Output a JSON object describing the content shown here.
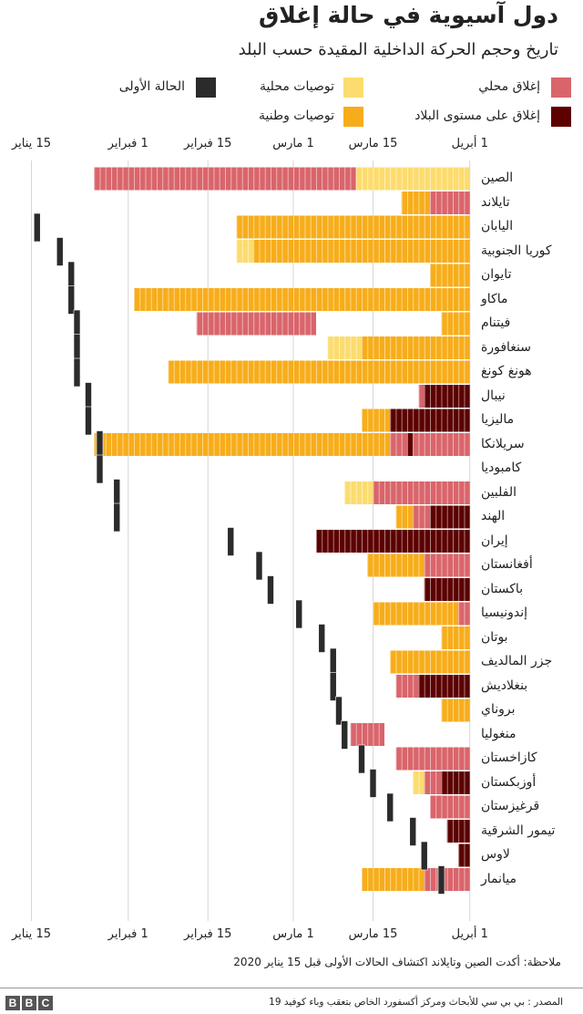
{
  "title": "دول آسيوية في حالة إغلاق",
  "subtitle": "تاريخ وحجم الحركة الداخلية المقيدة حسب البلد",
  "legend": [
    {
      "key": "local_lockdown",
      "label": "إغلاق محلي",
      "color": "#d9656b"
    },
    {
      "key": "national_lockdown",
      "label": "إغلاق على مستوى البلاد",
      "color": "#5c0000"
    },
    {
      "key": "local_advice",
      "label": "توصيات محلية",
      "color": "#fcdc6e"
    },
    {
      "key": "national_advice",
      "label": "توصيات وطنية",
      "color": "#f7ad1b"
    },
    {
      "key": "first_case",
      "label": "الحالة الأولى",
      "color": "#2b2b2b"
    }
  ],
  "chart_data": {
    "type": "gantt",
    "x_range": [
      "2020-01-15",
      "2020-04-01"
    ],
    "grid": true,
    "ticks": [
      {
        "date": "2020-01-15",
        "label": "15 يناير"
      },
      {
        "date": "2020-02-01",
        "label": "1 فبراير"
      },
      {
        "date": "2020-02-15",
        "label": "15 فبراير"
      },
      {
        "date": "2020-03-01",
        "label": "1 مارس"
      },
      {
        "date": "2020-03-15",
        "label": "15 مارس"
      },
      {
        "date": "2020-04-01",
        "label": "1 أبريل"
      }
    ],
    "rows": [
      {
        "name": "الصين",
        "first_case": null,
        "segments": [
          [
            "local_lockdown",
            "2020-01-26",
            "2020-03-11"
          ],
          [
            "local_advice",
            "2020-03-12",
            "2020-03-31"
          ]
        ]
      },
      {
        "name": "تايلاند",
        "first_case": null,
        "segments": [
          [
            "national_advice",
            "2020-03-20",
            "2020-03-24"
          ],
          [
            "local_lockdown",
            "2020-03-25",
            "2020-03-31"
          ]
        ]
      },
      {
        "name": "اليابان",
        "first_case": "2020-01-16",
        "segments": [
          [
            "national_advice",
            "2020-02-20",
            "2020-03-31"
          ]
        ]
      },
      {
        "name": "كوريا الجنوبية",
        "first_case": "2020-01-20",
        "segments": [
          [
            "local_advice",
            "2020-02-20",
            "2020-02-22"
          ],
          [
            "national_advice",
            "2020-02-23",
            "2020-03-31"
          ]
        ]
      },
      {
        "name": "تايوان",
        "first_case": "2020-01-22",
        "segments": [
          [
            "national_advice",
            "2020-03-25",
            "2020-03-31"
          ]
        ]
      },
      {
        "name": "ماكاو",
        "first_case": "2020-01-22",
        "segments": [
          [
            "national_advice",
            "2020-02-02",
            "2020-03-31"
          ]
        ]
      },
      {
        "name": "فيتنام",
        "first_case": "2020-01-23",
        "segments": [
          [
            "local_lockdown",
            "2020-02-13",
            "2020-03-04"
          ],
          [
            "national_advice",
            "2020-03-27",
            "2020-03-31"
          ]
        ]
      },
      {
        "name": "سنغافورة",
        "first_case": "2020-01-23",
        "segments": [
          [
            "local_advice",
            "2020-03-07",
            "2020-03-12"
          ],
          [
            "national_advice",
            "2020-03-13",
            "2020-03-31"
          ]
        ]
      },
      {
        "name": "هونغ كونغ",
        "first_case": "2020-01-23",
        "segments": [
          [
            "national_advice",
            "2020-02-08",
            "2020-03-31"
          ]
        ]
      },
      {
        "name": "نيبال",
        "first_case": "2020-01-25",
        "segments": [
          [
            "local_lockdown",
            "2020-03-23",
            "2020-03-23"
          ],
          [
            "national_lockdown",
            "2020-03-24",
            "2020-03-31"
          ]
        ]
      },
      {
        "name": "ماليزيا",
        "first_case": "2020-01-25",
        "segments": [
          [
            "national_advice",
            "2020-03-13",
            "2020-03-17"
          ],
          [
            "national_lockdown",
            "2020-03-18",
            "2020-03-31"
          ]
        ]
      },
      {
        "name": "سريلانكا",
        "first_case": "2020-01-27",
        "segments": [
          [
            "national_advice",
            "2020-01-26",
            "2020-03-17"
          ],
          [
            "local_lockdown",
            "2020-03-18",
            "2020-03-20"
          ],
          [
            "national_lockdown",
            "2020-03-21",
            "2020-03-21"
          ],
          [
            "local_lockdown",
            "2020-03-22",
            "2020-03-31"
          ]
        ]
      },
      {
        "name": "كامبوديا",
        "first_case": "2020-01-27",
        "segments": []
      },
      {
        "name": "الفلبين",
        "first_case": "2020-01-30",
        "segments": [
          [
            "local_advice",
            "2020-03-10",
            "2020-03-14"
          ],
          [
            "local_lockdown",
            "2020-03-15",
            "2020-03-31"
          ]
        ]
      },
      {
        "name": "الهند",
        "first_case": "2020-01-30",
        "segments": [
          [
            "national_advice",
            "2020-03-19",
            "2020-03-21"
          ],
          [
            "local_lockdown",
            "2020-03-22",
            "2020-03-24"
          ],
          [
            "national_lockdown",
            "2020-03-25",
            "2020-03-31"
          ]
        ]
      },
      {
        "name": "إيران",
        "first_case": "2020-02-19",
        "segments": [
          [
            "national_lockdown",
            "2020-03-05",
            "2020-03-31"
          ]
        ]
      },
      {
        "name": "أفغانستان",
        "first_case": "2020-02-24",
        "segments": [
          [
            "national_advice",
            "2020-03-14",
            "2020-03-23"
          ],
          [
            "local_lockdown",
            "2020-03-24",
            "2020-03-31"
          ]
        ]
      },
      {
        "name": "باكستان",
        "first_case": "2020-02-26",
        "segments": [
          [
            "national_lockdown",
            "2020-03-24",
            "2020-03-31"
          ]
        ]
      },
      {
        "name": "إندونيسيا",
        "first_case": "2020-03-02",
        "segments": [
          [
            "national_advice",
            "2020-03-15",
            "2020-03-29"
          ],
          [
            "local_lockdown",
            "2020-03-30",
            "2020-03-31"
          ]
        ]
      },
      {
        "name": "بوتان",
        "first_case": "2020-03-06",
        "segments": [
          [
            "national_advice",
            "2020-03-27",
            "2020-03-31"
          ]
        ]
      },
      {
        "name": "جزر المالديف",
        "first_case": "2020-03-08",
        "segments": [
          [
            "national_advice",
            "2020-03-18",
            "2020-03-31"
          ]
        ]
      },
      {
        "name": "بنغلاديش",
        "first_case": "2020-03-08",
        "segments": [
          [
            "local_lockdown",
            "2020-03-19",
            "2020-03-22"
          ],
          [
            "national_lockdown",
            "2020-03-23",
            "2020-03-31"
          ]
        ]
      },
      {
        "name": "بروناي",
        "first_case": "2020-03-09",
        "segments": [
          [
            "national_advice",
            "2020-03-27",
            "2020-03-31"
          ]
        ]
      },
      {
        "name": "منغوليا",
        "first_case": "2020-03-10",
        "segments": [
          [
            "local_lockdown",
            "2020-03-11",
            "2020-03-16"
          ]
        ]
      },
      {
        "name": "كازاخستان",
        "first_case": "2020-03-13",
        "segments": [
          [
            "local_lockdown",
            "2020-03-19",
            "2020-03-31"
          ]
        ]
      },
      {
        "name": "أوزبكستان",
        "first_case": "2020-03-15",
        "segments": [
          [
            "local_advice",
            "2020-03-22",
            "2020-03-23"
          ],
          [
            "local_lockdown",
            "2020-03-24",
            "2020-03-26"
          ],
          [
            "national_lockdown",
            "2020-03-27",
            "2020-03-31"
          ]
        ]
      },
      {
        "name": "قرغيزستان",
        "first_case": "2020-03-18",
        "segments": [
          [
            "local_lockdown",
            "2020-03-25",
            "2020-03-31"
          ]
        ]
      },
      {
        "name": "تيمور الشرقية",
        "first_case": "2020-03-22",
        "segments": [
          [
            "national_lockdown",
            "2020-03-28",
            "2020-03-31"
          ]
        ]
      },
      {
        "name": "لاوس",
        "first_case": "2020-03-24",
        "segments": [
          [
            "national_lockdown",
            "2020-03-30",
            "2020-03-31"
          ]
        ]
      },
      {
        "name": "ميانمار",
        "first_case": "2020-03-27",
        "segments": [
          [
            "national_advice",
            "2020-03-13",
            "2020-03-23"
          ],
          [
            "local_lockdown",
            "2020-03-24",
            "2020-03-31"
          ]
        ]
      }
    ]
  },
  "note": "ملاحظة: أكدت الصين وتايلاند اكتشاف الحالات الأولى قبل 15 يناير 2020",
  "source": "المصدر : بي بي سي للأبحاث ومركز أكسفورد الخاص بتعقب وباء كوفيد 19",
  "logo": "BBC"
}
